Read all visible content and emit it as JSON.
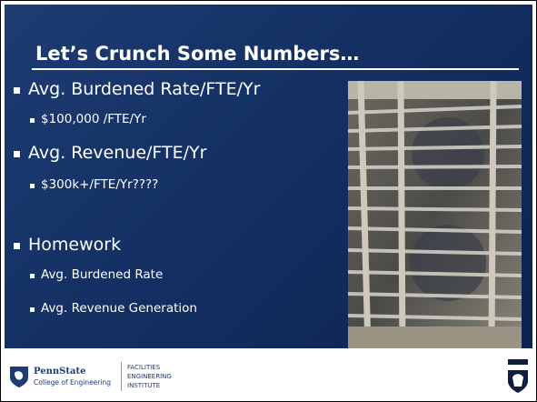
{
  "slide": {
    "title": "Let’s Crunch Some Numbers…",
    "bullets": [
      {
        "text": "Avg. Burdened Rate/FTE/Yr",
        "sub": [
          "$100,000 /FTE/Yr"
        ]
      },
      {
        "text": "Avg. Revenue/FTE/Yr",
        "sub": [
          "$300k+/FTE/Yr????"
        ]
      },
      {
        "text": "Homework",
        "sub": [
          "Avg. Burdened Rate",
          "Avg. Revenue Generation"
        ]
      }
    ]
  },
  "footer": {
    "logo_name": "PennState",
    "logo_sub": "College of Engineering",
    "institute": [
      "FACILITIES",
      "ENGINEERING",
      "INSTITUTE"
    ]
  }
}
